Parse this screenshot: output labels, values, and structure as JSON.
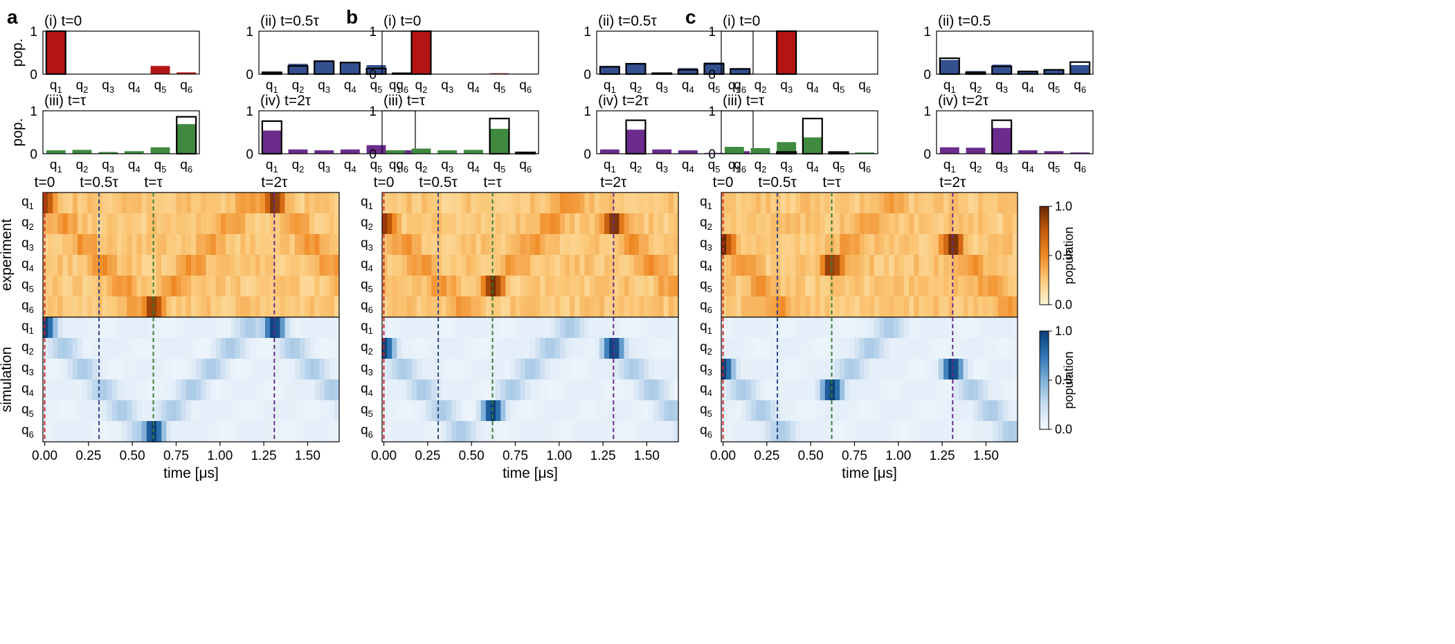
{
  "figure": {
    "panel_letters": [
      "a",
      "b",
      "c"
    ],
    "qubit_labels": [
      "q1",
      "q2",
      "q3",
      "q4",
      "q5",
      "q6"
    ],
    "bar_ylabel": "pop.",
    "heat_rows": [
      "experiment",
      "simulation"
    ],
    "time_markers": [
      {
        "label": "t=0",
        "time": 0.0,
        "color": "#d62728"
      },
      {
        "label": "t=0.5τ",
        "time": 0.31,
        "color": "#2f4a8a"
      },
      {
        "label": "t=τ",
        "time": 0.62,
        "color": "#3a7d34"
      },
      {
        "label": "t=2τ",
        "time": 1.31,
        "color": "#6a2c8c"
      }
    ],
    "time_axis": {
      "xlabel": "time [μs]",
      "ticks": [
        "0.00",
        "0.25",
        "0.50",
        "0.75",
        "1.00",
        "1.25",
        "1.50"
      ],
      "xlim": [
        -0.01,
        1.68
      ]
    },
    "colorbars": [
      {
        "label": "population",
        "ticks": [
          "1.0",
          "0.5",
          "0.0"
        ],
        "colors": [
          "#fdf6d6",
          "#fbc97a",
          "#f08a26",
          "#c55a0c",
          "#6b2a05"
        ]
      },
      {
        "label": "population",
        "ticks": [
          "1.0",
          "0.5",
          "0.0"
        ],
        "colors": [
          "#f6fafe",
          "#c9ddf0",
          "#7fb0d9",
          "#2f74b3",
          "#0a3f7a"
        ]
      }
    ]
  },
  "chart_data": [
    {
      "panel": "a",
      "type": "bar",
      "subplots": [
        {
          "title": "(i) t=0",
          "color": "#b51414",
          "ylim": [
            0,
            1
          ],
          "yticks": [
            "0",
            "1"
          ],
          "experiment": [
            1.0,
            0.005,
            0.003,
            0.005,
            0.19,
            0.04
          ],
          "simulation": [
            1.0,
            0.0,
            0.0,
            0.0,
            0.0,
            0.0
          ]
        },
        {
          "title": "(ii) t=0.5τ",
          "color": "#34508f",
          "ylim": [
            0,
            1
          ],
          "yticks": [
            "0",
            "1"
          ],
          "experiment": [
            0.06,
            0.24,
            0.32,
            0.27,
            0.21,
            0.03
          ],
          "simulation": [
            0.04,
            0.19,
            0.3,
            0.27,
            0.13,
            0.02
          ]
        },
        {
          "title": "(iii) t=τ",
          "color": "#3f8a3f",
          "ylim": [
            0,
            1
          ],
          "yticks": [
            "0",
            "1"
          ],
          "experiment": [
            0.08,
            0.09,
            0.04,
            0.06,
            0.15,
            0.69
          ],
          "simulation": [
            0.0,
            0.0,
            0.0,
            0.0,
            0.0,
            0.86
          ]
        },
        {
          "title": "(iv) t=2τ",
          "color": "#6b2c8e",
          "ylim": [
            0,
            1
          ],
          "yticks": [
            "0",
            "1"
          ],
          "experiment": [
            0.54,
            0.1,
            0.08,
            0.1,
            0.2,
            0.08
          ],
          "simulation": [
            0.76,
            0.0,
            0.0,
            0.0,
            0.0,
            0.0
          ]
        }
      ],
      "heatmap": {
        "peak_rows": [
          0,
          0,
          5,
          0
        ],
        "peak_times": [
          0.0,
          0.0,
          0.62,
          1.31
        ]
      }
    },
    {
      "panel": "b",
      "type": "bar",
      "subplots": [
        {
          "title": "(i) t=0",
          "color": "#b51414",
          "ylim": [
            0,
            1
          ],
          "yticks": [
            "0",
            "1"
          ],
          "experiment": [
            0.004,
            1.0,
            0.004,
            0.003,
            0.02,
            0.01
          ],
          "simulation": [
            0.0,
            1.0,
            0.0,
            0.0,
            0.0,
            0.0
          ]
        },
        {
          "title": "(ii) t=0.5τ",
          "color": "#34508f",
          "ylim": [
            0,
            1
          ],
          "yticks": [
            "0",
            "1"
          ],
          "experiment": [
            0.19,
            0.26,
            0.04,
            0.14,
            0.27,
            0.14
          ],
          "simulation": [
            0.17,
            0.24,
            0.02,
            0.1,
            0.24,
            0.12
          ]
        },
        {
          "title": "(iii) t=τ",
          "color": "#3f8a3f",
          "ylim": [
            0,
            1
          ],
          "yticks": [
            "0",
            "1"
          ],
          "experiment": [
            0.08,
            0.12,
            0.08,
            0.09,
            0.58,
            0.05
          ],
          "simulation": [
            0.0,
            0.0,
            0.0,
            0.0,
            0.82,
            0.03
          ]
        },
        {
          "title": "(iv) t=2τ",
          "color": "#6b2c8e",
          "ylim": [
            0,
            1
          ],
          "yticks": [
            "0",
            "1"
          ],
          "experiment": [
            0.1,
            0.56,
            0.1,
            0.08,
            0.02,
            0.06
          ],
          "simulation": [
            0.0,
            0.78,
            0.0,
            0.0,
            0.0,
            0.0
          ]
        }
      ],
      "heatmap": {
        "peak_rows": [
          1,
          1,
          4,
          1
        ],
        "peak_times": [
          0.0,
          0.0,
          0.62,
          1.31
        ]
      }
    },
    {
      "panel": "c",
      "type": "bar",
      "subplots": [
        {
          "title": "(i) t=0",
          "color": "#b51414",
          "ylim": [
            0,
            1
          ],
          "yticks": [
            "0",
            "1"
          ],
          "experiment": [
            0.004,
            0.004,
            1.0,
            0.003,
            0.004,
            0.004
          ],
          "simulation": [
            0.0,
            0.0,
            1.0,
            0.0,
            0.0,
            0.0
          ]
        },
        {
          "title": "(ii) t=0.5",
          "color": "#34508f",
          "ylim": [
            0,
            1
          ],
          "yticks": [
            "0",
            "1"
          ],
          "experiment": [
            0.33,
            0.07,
            0.22,
            0.08,
            0.11,
            0.21
          ],
          "simulation": [
            0.37,
            0.04,
            0.18,
            0.06,
            0.1,
            0.28
          ]
        },
        {
          "title": "(iii) t=τ",
          "color": "#3f8a3f",
          "ylim": [
            0,
            1
          ],
          "yticks": [
            "0",
            "1"
          ],
          "experiment": [
            0.16,
            0.13,
            0.27,
            0.38,
            0.05,
            0.03
          ],
          "simulation": [
            0.0,
            0.0,
            0.04,
            0.82,
            0.04,
            0.0
          ]
        },
        {
          "title": "(iv) t=2τ",
          "color": "#6b2c8e",
          "ylim": [
            0,
            1
          ],
          "yticks": [
            "0",
            "1"
          ],
          "experiment": [
            0.15,
            0.14,
            0.6,
            0.08,
            0.06,
            0.03
          ],
          "simulation": [
            0.0,
            0.0,
            0.78,
            0.0,
            0.0,
            0.0
          ]
        }
      ],
      "heatmap": {
        "peak_rows": [
          2,
          2,
          3,
          2
        ],
        "peak_times": [
          0.0,
          0.0,
          0.62,
          1.31
        ]
      }
    }
  ]
}
